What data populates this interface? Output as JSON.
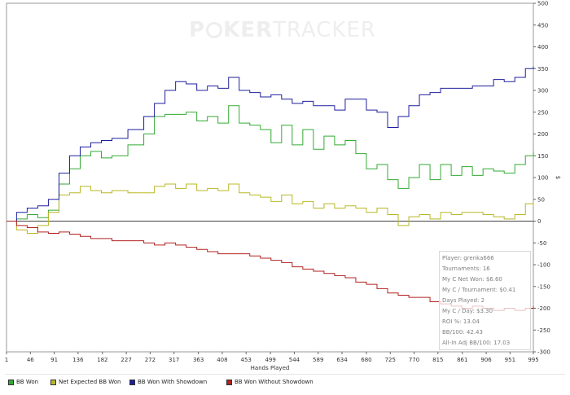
{
  "watermark": {
    "part1": "P",
    "part2": "KER",
    "part3": "TRACKER"
  },
  "info_box": {
    "lines": [
      "Player: grenka666",
      "Tournaments: 16",
      "My C Net Won: $6.60",
      "My C / Tournament: $0.41",
      "Days Played: 2",
      "My C / Day: $3.30",
      "ROI %: 13.04",
      "BB/100: 42.43",
      "All-In Adj BB/100: 17.03"
    ]
  },
  "legend": [
    {
      "label": "BB Won",
      "color": "#33aa33"
    },
    {
      "label": "Net Expected BB Won",
      "color": "#b8b826"
    },
    {
      "label": "BB Won With Showdown",
      "color": "#1f1f9e"
    },
    {
      "label": "BB Won Without Showdown",
      "color": "#b22020"
    }
  ],
  "chart_data": {
    "type": "line",
    "xlabel": "Hands Played",
    "ylabel": "",
    "y_unit_label": "$",
    "xlim": [
      1,
      995
    ],
    "ylim": [
      -300,
      500
    ],
    "x_ticks": [
      1,
      46,
      91,
      136,
      182,
      227,
      272,
      317,
      363,
      408,
      453,
      499,
      544,
      589,
      634,
      680,
      725,
      770,
      815,
      861,
      906,
      951,
      995
    ],
    "y_ticks": [
      500,
      450,
      400,
      350,
      300,
      250,
      200,
      150,
      100,
      50,
      0,
      -50,
      -100,
      -150,
      -200,
      -250,
      -300
    ],
    "grid": false,
    "legend_position": "bottom",
    "series": [
      {
        "name": "BB Won",
        "color": "#33aa33",
        "x": [
          1,
          20,
          40,
          60,
          80,
          100,
          120,
          140,
          160,
          180,
          200,
          230,
          260,
          280,
          300,
          320,
          340,
          360,
          380,
          400,
          420,
          440,
          460,
          480,
          500,
          520,
          540,
          560,
          580,
          600,
          620,
          640,
          660,
          680,
          700,
          720,
          740,
          760,
          780,
          800,
          820,
          840,
          860,
          880,
          900,
          920,
          940,
          960,
          980,
          995
        ],
        "values": [
          0,
          5,
          15,
          8,
          25,
          85,
          120,
          150,
          160,
          145,
          150,
          175,
          200,
          240,
          245,
          245,
          250,
          230,
          240,
          225,
          265,
          225,
          220,
          210,
          180,
          220,
          175,
          210,
          165,
          195,
          175,
          185,
          155,
          120,
          130,
          95,
          75,
          100,
          130,
          95,
          130,
          105,
          125,
          105,
          120,
          115,
          110,
          130,
          150,
          160
        ]
      },
      {
        "name": "Net Expected BB Won",
        "color": "#b8b826",
        "x": [
          1,
          20,
          40,
          60,
          80,
          100,
          120,
          140,
          160,
          180,
          200,
          230,
          260,
          280,
          300,
          320,
          340,
          360,
          380,
          400,
          420,
          440,
          460,
          480,
          500,
          520,
          540,
          560,
          580,
          600,
          620,
          640,
          660,
          680,
          700,
          720,
          740,
          760,
          780,
          800,
          820,
          840,
          860,
          880,
          900,
          920,
          940,
          960,
          980,
          995
        ],
        "values": [
          0,
          -20,
          -28,
          -10,
          20,
          60,
          65,
          80,
          70,
          65,
          70,
          65,
          65,
          80,
          85,
          75,
          85,
          70,
          75,
          70,
          85,
          65,
          60,
          55,
          45,
          60,
          40,
          45,
          30,
          40,
          30,
          35,
          30,
          20,
          30,
          15,
          -10,
          10,
          15,
          5,
          20,
          15,
          20,
          20,
          15,
          10,
          5,
          15,
          40,
          35
        ]
      },
      {
        "name": "BB Won With Showdown",
        "color": "#1f1f9e",
        "x": [
          1,
          20,
          40,
          60,
          80,
          100,
          120,
          140,
          160,
          180,
          200,
          230,
          260,
          280,
          300,
          320,
          340,
          360,
          380,
          400,
          420,
          440,
          460,
          480,
          500,
          520,
          540,
          560,
          580,
          600,
          620,
          640,
          660,
          680,
          700,
          720,
          740,
          760,
          780,
          800,
          820,
          840,
          860,
          880,
          900,
          920,
          940,
          960,
          980,
          995
        ],
        "values": [
          0,
          20,
          30,
          35,
          50,
          110,
          150,
          170,
          180,
          185,
          190,
          210,
          240,
          270,
          300,
          320,
          315,
          300,
          310,
          305,
          330,
          300,
          295,
          285,
          290,
          280,
          270,
          275,
          265,
          265,
          255,
          280,
          280,
          255,
          250,
          215,
          240,
          265,
          290,
          295,
          305,
          305,
          305,
          310,
          310,
          325,
          320,
          330,
          350,
          355
        ]
      },
      {
        "name": "BB Won Without Showdown",
        "color": "#b22020",
        "x": [
          1,
          20,
          40,
          60,
          80,
          100,
          120,
          140,
          160,
          180,
          200,
          230,
          260,
          280,
          300,
          320,
          340,
          360,
          380,
          400,
          420,
          440,
          460,
          480,
          500,
          520,
          540,
          560,
          580,
          600,
          620,
          640,
          660,
          680,
          700,
          720,
          740,
          760,
          780,
          800,
          820,
          840,
          860,
          880,
          900,
          920,
          940,
          960,
          980,
          995
        ],
        "values": [
          0,
          -10,
          -15,
          -25,
          -28,
          -25,
          -30,
          -35,
          -40,
          -40,
          -45,
          -45,
          -50,
          -55,
          -50,
          -55,
          -60,
          -65,
          -70,
          -75,
          -75,
          -75,
          -80,
          -85,
          -90,
          -95,
          -105,
          -110,
          -115,
          -120,
          -125,
          -130,
          -140,
          -145,
          -155,
          -165,
          -170,
          -175,
          -175,
          -185,
          -190,
          -195,
          -200,
          -195,
          -200,
          -205,
          -200,
          -205,
          -200,
          -195
        ]
      }
    ]
  }
}
